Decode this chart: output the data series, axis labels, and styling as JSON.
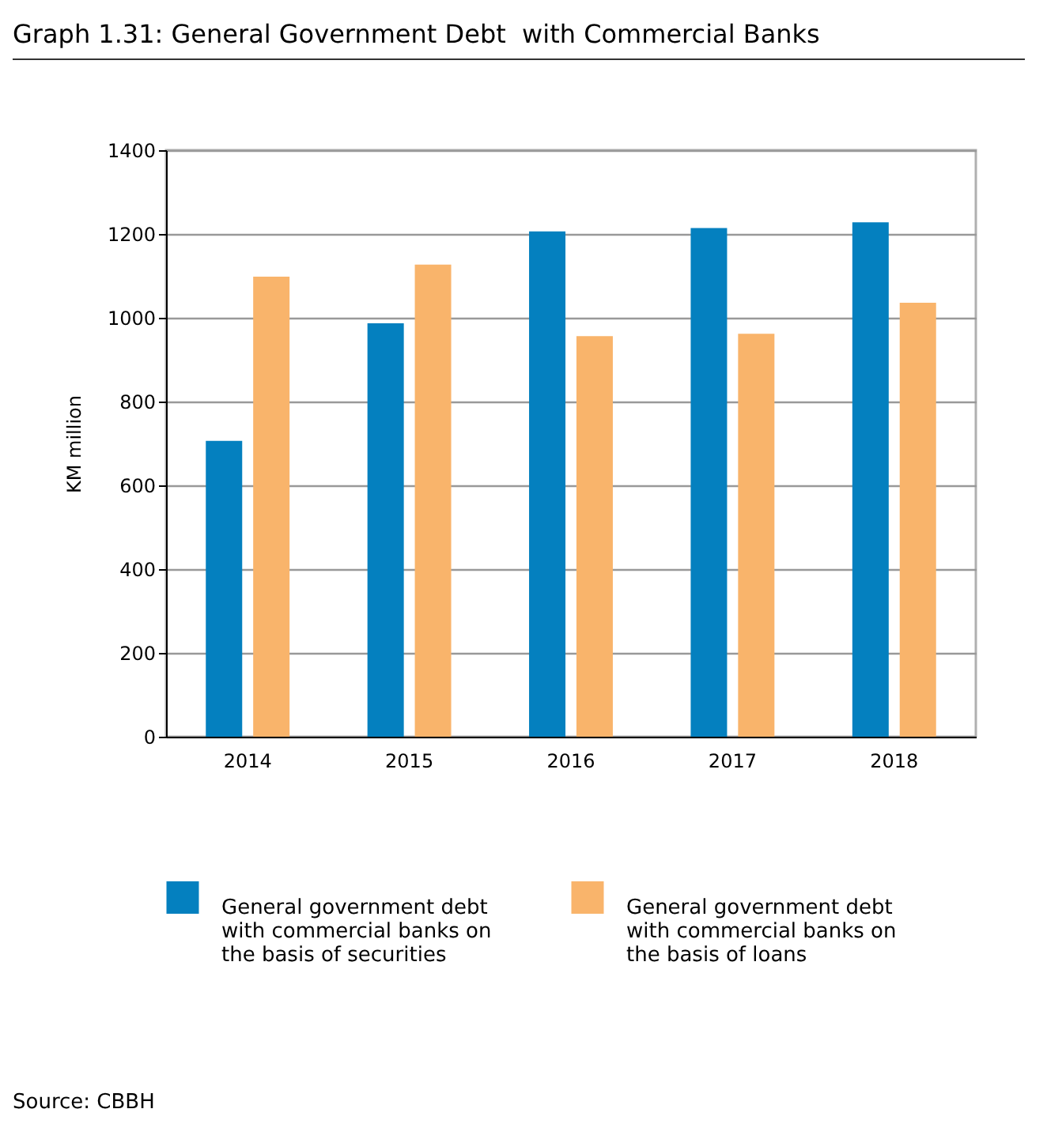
{
  "chart_data": {
    "type": "bar",
    "title": "Graph 1.31: General Government Debt  with Commercial Banks",
    "ylabel": "KM million",
    "categories": [
      "2014",
      "2015",
      "2016",
      "2017",
      "2018"
    ],
    "series": [
      {
        "name": "General government debt with commercial banks on the basis of securities",
        "color": "#0480bf",
        "values": [
          706,
          987,
          1206,
          1214,
          1228
        ]
      },
      {
        "name": "General government debt with commercial banks on the basis of loans",
        "color": "#f9b46b",
        "values": [
          1098,
          1127,
          956,
          962,
          1036
        ]
      }
    ],
    "ylim": [
      0,
      1400
    ],
    "yticks": [
      0,
      200,
      400,
      600,
      800,
      1000,
      1200,
      1400
    ],
    "grid": "y",
    "legend": "bottom",
    "annotations": [
      "Source: CBBH"
    ]
  }
}
